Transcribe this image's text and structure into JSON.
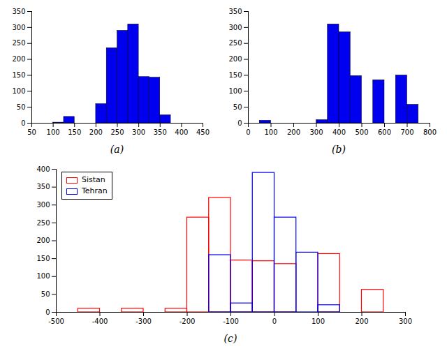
{
  "chart_data": [
    {
      "type": "histogram",
      "title": "(a)",
      "bins": [
        100,
        125,
        150,
        175,
        200,
        225,
        250,
        275,
        300,
        325,
        350,
        375,
        400
      ],
      "values": [
        2,
        20,
        0,
        0,
        60,
        235,
        290,
        310,
        145,
        143,
        25,
        0
      ],
      "color": "#0000EE",
      "xlim": [
        50,
        450
      ],
      "ylim": [
        0,
        350
      ],
      "xticks": [
        50,
        100,
        150,
        200,
        250,
        300,
        350,
        400,
        450
      ],
      "yticks": [
        0,
        50,
        100,
        150,
        200,
        250,
        300,
        350
      ],
      "grid": false
    },
    {
      "type": "histogram",
      "title": "(b)",
      "bins": [
        50,
        100,
        150,
        200,
        250,
        300,
        350,
        400,
        450,
        500,
        550,
        600,
        650,
        700,
        750
      ],
      "values": [
        8,
        0,
        0,
        0,
        0,
        10,
        310,
        285,
        148,
        0,
        135,
        0,
        150,
        58
      ],
      "color": "#0000EE",
      "xlim": [
        0,
        800
      ],
      "ylim": [
        0,
        350
      ],
      "xticks": [
        0,
        100,
        200,
        300,
        400,
        500,
        600,
        700,
        800
      ],
      "yticks": [
        0,
        50,
        100,
        150,
        200,
        250,
        300,
        350
      ],
      "grid": false
    },
    {
      "type": "histogram",
      "title": "(c)",
      "series": [
        {
          "name": "Sistan",
          "color": "#FF0000",
          "bins": [
            -450,
            -400,
            -350,
            -300,
            -250,
            -200,
            -150,
            -100,
            -50,
            0,
            50,
            100,
            150,
            200,
            250,
            300
          ],
          "values": [
            10,
            0,
            10,
            0,
            10,
            265,
            320,
            145,
            143,
            135,
            0,
            163,
            0,
            63,
            0
          ]
        },
        {
          "name": "Tehran",
          "color": "#0000EE",
          "bins": [
            -150,
            -100,
            -50,
            0,
            50,
            100,
            150,
            200
          ],
          "values": [
            160,
            25,
            390,
            265,
            167,
            20,
            0
          ]
        }
      ],
      "xlim": [
        -500,
        300
      ],
      "ylim": [
        0,
        400
      ],
      "xticks": [
        -500,
        -400,
        -300,
        -200,
        -100,
        0,
        100,
        200,
        300
      ],
      "yticks": [
        0,
        50,
        100,
        150,
        200,
        250,
        300,
        350,
        400
      ],
      "legend": "upper left",
      "grid": false
    }
  ]
}
